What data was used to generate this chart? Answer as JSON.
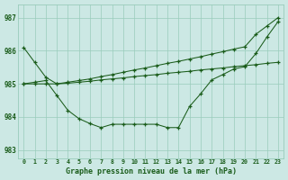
{
  "title": "Graphe pression niveau de la mer (hPa)",
  "bg_color": "#cce8e4",
  "grid_color": "#99ccbb",
  "line_color": "#1a5c1a",
  "x_hours": [
    0,
    1,
    2,
    3,
    4,
    5,
    6,
    7,
    8,
    9,
    10,
    11,
    12,
    13,
    14,
    15,
    16,
    17,
    18,
    19,
    20,
    21,
    22,
    23
  ],
  "ylim": [
    982.75,
    987.4
  ],
  "yticks": [
    983,
    984,
    985,
    986,
    987
  ],
  "line1_y": [
    986.1,
    985.65,
    985.2,
    985.0,
    985.05,
    985.1,
    985.15,
    985.22,
    985.28,
    985.35,
    985.42,
    985.48,
    985.55,
    985.62,
    985.68,
    985.75,
    985.82,
    985.9,
    985.97,
    986.05,
    986.12,
    986.5,
    986.75,
    987.0
  ],
  "line2_y": [
    985.0,
    985.0,
    985.0,
    985.0,
    985.02,
    985.05,
    985.08,
    985.12,
    985.15,
    985.18,
    985.22,
    985.25,
    985.28,
    985.32,
    985.35,
    985.38,
    985.42,
    985.45,
    985.48,
    985.52,
    985.55,
    985.58,
    985.62,
    985.65
  ],
  "line3_y": [
    985.0,
    985.05,
    985.1,
    984.65,
    984.2,
    983.95,
    983.8,
    983.68,
    983.78,
    983.78,
    983.78,
    983.78,
    983.78,
    983.68,
    983.68,
    984.32,
    984.7,
    985.12,
    985.28,
    985.45,
    985.52,
    985.92,
    986.42,
    986.88
  ]
}
